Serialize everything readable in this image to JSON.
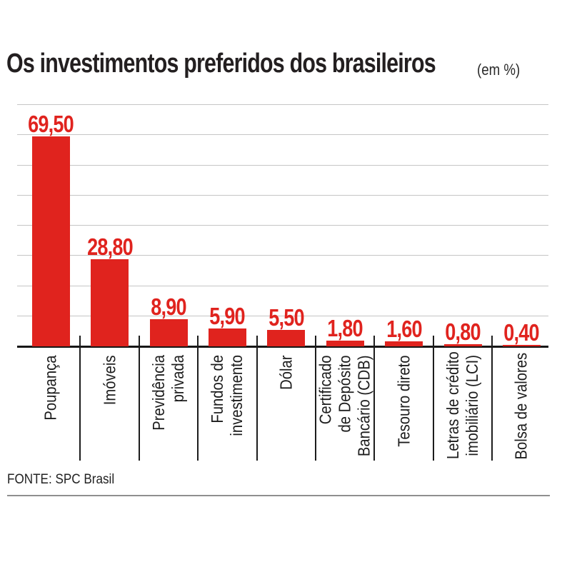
{
  "header": {
    "title": "Os investimentos preferidos dos brasileiros",
    "subtitle": "(em %)"
  },
  "footer": {
    "source": "FONTE: SPC Brasil"
  },
  "chart_data": {
    "type": "bar",
    "title": "Os investimentos preferidos dos brasileiros",
    "unit": "em %",
    "categories": [
      "Poupança",
      "Imóveis",
      "Previdência privada",
      "Fundos de investimento",
      "Dólar",
      "Certificado de Depósito Bancário (CDB)",
      "Tesouro direto",
      "Letras de crédito imobiliário (LCI)",
      "Bolsa de valores"
    ],
    "category_lines": [
      [
        "Poupança"
      ],
      [
        "Imóveis"
      ],
      [
        "Previdência",
        "privada"
      ],
      [
        "Fundos de",
        "investimento"
      ],
      [
        "Dólar"
      ],
      [
        "Certificado",
        "de Depósito",
        "Bancário (CDB)"
      ],
      [
        "Tesouro direto"
      ],
      [
        "Letras de crédito",
        "imobiliário (LCI)"
      ],
      [
        "Bolsa de valores"
      ]
    ],
    "values": [
      69.5,
      28.8,
      8.9,
      5.9,
      5.5,
      1.8,
      1.6,
      0.8,
      0.4
    ],
    "value_labels": [
      "69,50",
      "28,80",
      "8,90",
      "5,90",
      "5,50",
      "1,80",
      "1,60",
      "0,80",
      "0,40"
    ],
    "ylim": [
      0,
      80
    ],
    "grid_step": 10,
    "grid": true,
    "legend": false,
    "xlabel": "",
    "ylabel": "",
    "bar_color": "#e0231e",
    "value_label_color": "#e0231e",
    "axis_color": "#171717",
    "grid_color": "#c5c5c5",
    "divider_color": "#1c1c1c"
  }
}
